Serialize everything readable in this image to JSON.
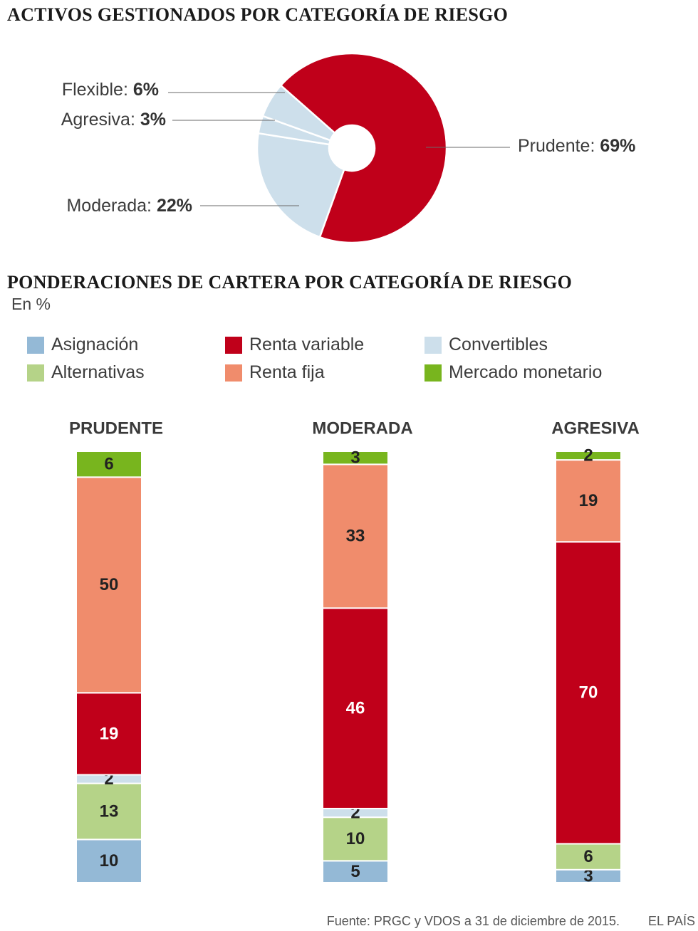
{
  "titles": {
    "pie": "ACTIVOS GESTIONADOS POR CATEGORÍA DE RIESGO",
    "bars": "PONDERACIONES DE CARTERA POR CATEGORÍA DE RIESGO",
    "bars_unit": "En %"
  },
  "legend": [
    {
      "label": "Asignación",
      "color": "#94b9d6"
    },
    {
      "label": "Renta variable",
      "color": "#c0001a"
    },
    {
      "label": "Convertibles",
      "color": "#cddfeb"
    },
    {
      "label": "Alternativas",
      "color": "#b5d388"
    },
    {
      "label": "Renta fija",
      "color": "#f08c6c"
    },
    {
      "label": "Mercado monetario",
      "color": "#78b51e"
    }
  ],
  "chart_data": [
    {
      "type": "pie",
      "title": "ACTIVOS GESTIONADOS POR CATEGORÍA DE RIESGO",
      "slices": [
        {
          "label": "Prudente",
          "value": 69,
          "value_text": "69%",
          "color": "#c0001a"
        },
        {
          "label": "Moderada",
          "value": 22,
          "value_text": "22%",
          "color": "#cddfeb"
        },
        {
          "label": "Agresiva",
          "value": 3,
          "value_text": "3%",
          "color": "#cddfeb"
        },
        {
          "label": "Flexible",
          "value": 6,
          "value_text": "6%",
          "color": "#cddfeb"
        }
      ]
    },
    {
      "type": "bar",
      "stacked": true,
      "title": "PONDERACIONES DE CARTERA POR CATEGORÍA DE RIESGO",
      "ylabel": "En %",
      "categories": [
        "PRUDENTE",
        "MODERADA",
        "AGRESIVA"
      ],
      "series": [
        {
          "name": "Asignación",
          "values": [
            10,
            5,
            3
          ],
          "color": "#94b9d6",
          "text_color": "#222222"
        },
        {
          "name": "Alternativas",
          "values": [
            13,
            10,
            6
          ],
          "color": "#b5d388",
          "text_color": "#222222"
        },
        {
          "name": "Convertibles",
          "values": [
            2,
            2,
            0
          ],
          "color": "#cddfeb",
          "text_color": "#222222"
        },
        {
          "name": "Renta variable",
          "values": [
            19,
            46,
            70
          ],
          "color": "#c0001a",
          "text_color": "#ffffff"
        },
        {
          "name": "Renta fija",
          "values": [
            50,
            33,
            19
          ],
          "color": "#f08c6c",
          "text_color": "#222222"
        },
        {
          "name": "Mercado monetario",
          "values": [
            6,
            3,
            2
          ],
          "color": "#78b51e",
          "text_color": "#222222"
        }
      ]
    }
  ],
  "footer": {
    "source": "Fuente: PRGC y VDOS a 31 de diciembre de 2015.",
    "brand": "EL PAÍS"
  }
}
